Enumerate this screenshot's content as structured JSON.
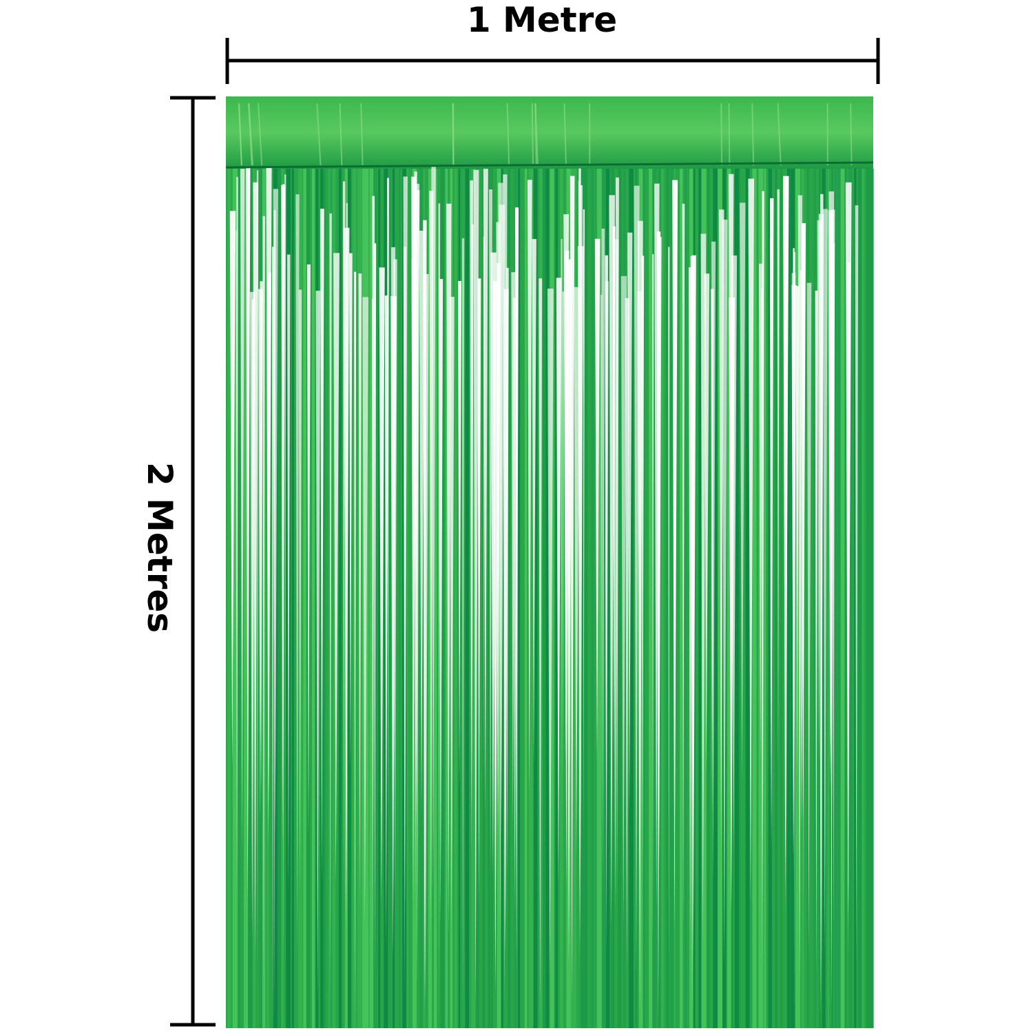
{
  "dimensions": {
    "width_label": "1 Metre",
    "height_label": "2 Metres"
  }
}
